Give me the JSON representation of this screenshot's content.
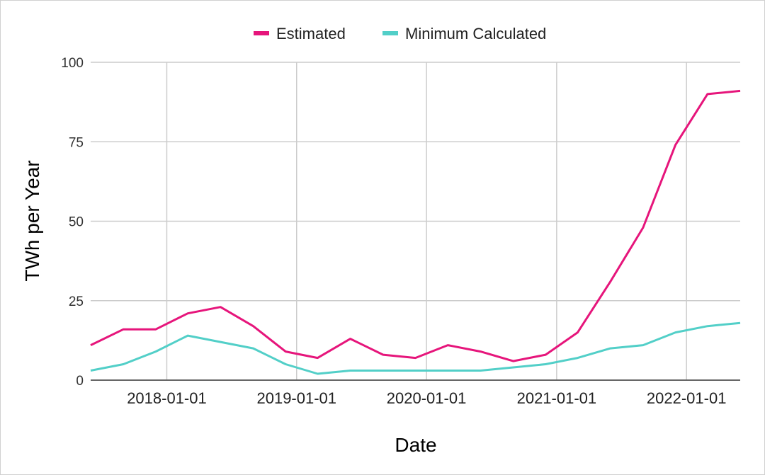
{
  "chart_data": {
    "type": "line",
    "title": "",
    "xlabel": "Date",
    "ylabel": "TWh per Year",
    "ylim": [
      0,
      100
    ],
    "yticks": [
      0,
      25,
      50,
      75,
      100
    ],
    "xticks": [
      "2018-01-01",
      "2019-01-01",
      "2020-01-01",
      "2021-01-01",
      "2022-01-01"
    ],
    "xlim": [
      "2017-06-01",
      "2022-06-01"
    ],
    "grid": true,
    "legend_position": "top",
    "x": [
      "2017-06-01",
      "2017-09-01",
      "2017-12-01",
      "2018-03-01",
      "2018-06-01",
      "2018-09-01",
      "2018-12-01",
      "2019-03-01",
      "2019-06-01",
      "2019-09-01",
      "2019-12-01",
      "2020-03-01",
      "2020-06-01",
      "2020-09-01",
      "2020-12-01",
      "2021-03-01",
      "2021-06-01",
      "2021-09-01",
      "2021-12-01",
      "2022-03-01",
      "2022-06-01"
    ],
    "series": [
      {
        "name": "Estimated",
        "color": "#e6157b",
        "values": [
          11,
          16,
          16,
          21,
          23,
          17,
          9,
          7,
          13,
          8,
          7,
          11,
          9,
          6,
          8,
          15,
          31,
          48,
          74,
          90,
          91
        ]
      },
      {
        "name": "Minimum Calculated",
        "color": "#52cfc8",
        "values": [
          3,
          5,
          9,
          14,
          12,
          10,
          5,
          2,
          3,
          3,
          3,
          3,
          3,
          4,
          5,
          7,
          10,
          11,
          15,
          17,
          18
        ]
      }
    ]
  }
}
